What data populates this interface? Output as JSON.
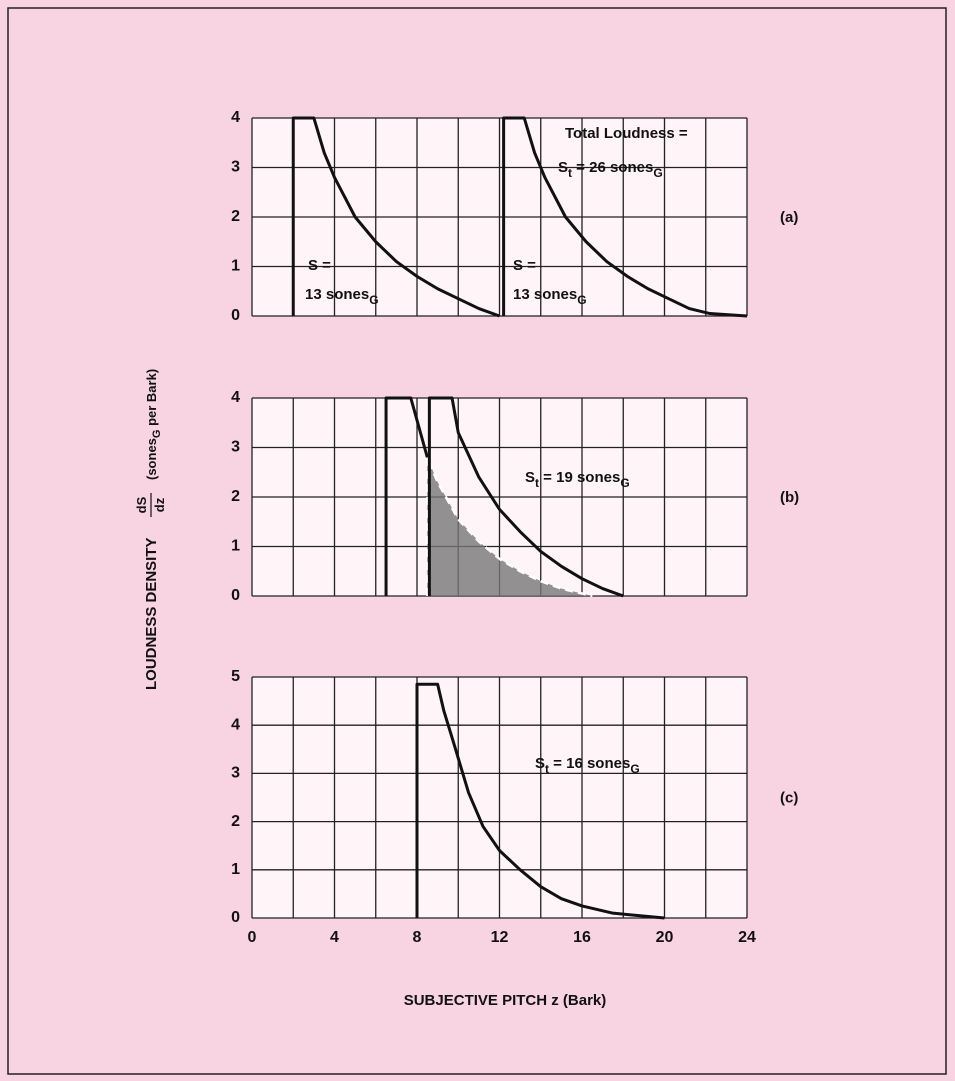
{
  "chart_data": [
    {
      "type": "line",
      "label": "(a)",
      "xlim": [
        0,
        24
      ],
      "xgrid": [
        0,
        2,
        4,
        6,
        8,
        10,
        12,
        14,
        16,
        18,
        20,
        22,
        24
      ],
      "ylim": [
        0,
        4
      ],
      "yticks": [
        0,
        1,
        2,
        3,
        4
      ],
      "grid": true,
      "series": [
        {
          "color": "#111",
          "x": [
            2,
            2,
            3,
            3.5,
            4,
            5,
            6,
            7,
            8,
            9,
            10,
            11,
            12
          ],
          "values": [
            0,
            4,
            4,
            3.3,
            2.8,
            2.0,
            1.5,
            1.1,
            0.8,
            0.55,
            0.35,
            0.15,
            0
          ]
        },
        {
          "color": "#111",
          "x": [
            12.2,
            12.2,
            13.2,
            13.7,
            14.2,
            15.2,
            16.2,
            17.2,
            18.2,
            19.2,
            20.2,
            21.2,
            22.2,
            24
          ],
          "values": [
            0,
            4,
            4,
            3.3,
            2.8,
            2.0,
            1.5,
            1.1,
            0.8,
            0.55,
            0.35,
            0.15,
            0.05,
            0
          ]
        }
      ],
      "annotations": [
        {
          "parts": [
            {
              "text": "Total Loudness ="
            }
          ]
        },
        {
          "parts": [
            {
              "text": "S"
            },
            {
              "sub": "t"
            },
            {
              "text": " = 26 sones"
            },
            {
              "sub": "G"
            }
          ]
        },
        {
          "parts": [
            {
              "text": "S ="
            }
          ]
        },
        {
          "parts": [
            {
              "text": "13 sones"
            },
            {
              "sub": "G"
            }
          ]
        },
        {
          "parts": [
            {
              "text": "S ="
            }
          ]
        },
        {
          "parts": [
            {
              "text": "13 sones"
            },
            {
              "sub": "G"
            }
          ]
        }
      ]
    },
    {
      "type": "line",
      "label": "(b)",
      "xlim": [
        0,
        24
      ],
      "xgrid": [
        0,
        2,
        4,
        6,
        8,
        10,
        12,
        14,
        16,
        18,
        20,
        22,
        24
      ],
      "ylim": [
        0,
        4
      ],
      "yticks": [
        0,
        1,
        2,
        3,
        4
      ],
      "grid": true,
      "ylabel": {
        "before": "LOUDNESS DENSITY ",
        "numerator": "dS",
        "denominator": "dz",
        "after": [
          "(sones",
          "G",
          " per Bark)"
        ]
      },
      "series": [
        {
          "color": "#777",
          "fill": true,
          "dashed": true,
          "x": [
            8.5,
            8.5,
            9,
            10,
            11,
            12,
            13,
            14,
            15,
            16,
            16.5
          ],
          "values": [
            0,
            2.8,
            2.3,
            1.55,
            1.1,
            0.75,
            0.5,
            0.3,
            0.15,
            0.05,
            0
          ]
        },
        {
          "color": "#111",
          "x": [
            6.5,
            6.5,
            7.7,
            8.5
          ],
          "values": [
            0,
            4,
            4,
            2.8
          ]
        },
        {
          "color": "#111",
          "x": [
            8.6,
            8.6,
            9.7,
            10,
            11,
            12,
            13,
            14,
            15,
            16,
            17,
            18
          ],
          "values": [
            0,
            4,
            4,
            3.3,
            2.4,
            1.75,
            1.3,
            0.9,
            0.6,
            0.35,
            0.15,
            0
          ]
        }
      ],
      "annotations": [
        {
          "parts": [
            {
              "text": "S"
            },
            {
              "sub": "t"
            },
            {
              "text": " = 19 sones"
            },
            {
              "sub": "G"
            }
          ]
        }
      ]
    },
    {
      "type": "line",
      "label": "(c)",
      "xlim": [
        0,
        24
      ],
      "xgrid": [
        0,
        2,
        4,
        6,
        8,
        10,
        12,
        14,
        16,
        18,
        20,
        22,
        24
      ],
      "xticks": [
        0,
        4,
        8,
        12,
        16,
        20,
        24
      ],
      "ylim": [
        0,
        5
      ],
      "yticks": [
        0,
        1,
        2,
        3,
        4,
        5
      ],
      "grid": true,
      "xlabel": "SUBJECTIVE PITCH z (Bark)",
      "series": [
        {
          "color": "#111",
          "x": [
            8,
            8,
            9,
            9.3,
            9.8,
            10.5,
            11.2,
            12,
            13,
            14,
            15,
            16,
            17.5,
            20
          ],
          "values": [
            0,
            4.85,
            4.85,
            4.3,
            3.6,
            2.6,
            1.9,
            1.4,
            1.0,
            0.65,
            0.4,
            0.25,
            0.1,
            0
          ]
        }
      ],
      "annotations": [
        {
          "parts": [
            {
              "text": "S"
            },
            {
              "sub": "t"
            },
            {
              "text": " = 16 sones"
            },
            {
              "sub": "G"
            }
          ]
        }
      ]
    }
  ]
}
